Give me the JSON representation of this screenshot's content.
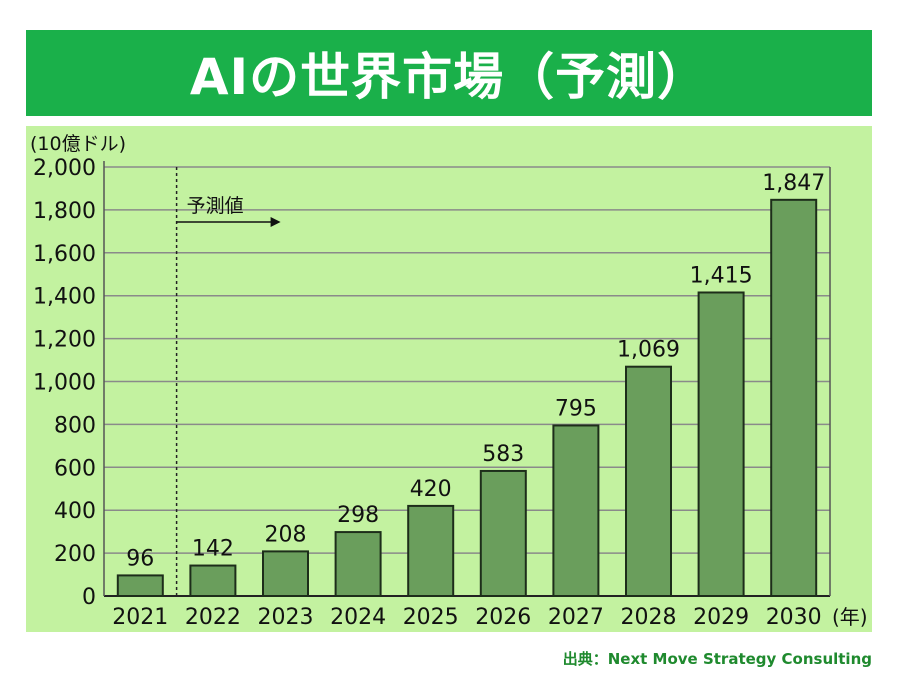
{
  "title": "AIの世界市場（予測）",
  "source": "出典：Next Move Strategy Consulting",
  "colors": {
    "title_bg": "#1ab04a",
    "plot_bg": "#c3f2a0",
    "bar": "#6a9e5c",
    "bar_edge": "#1d2d1a",
    "grid": "#8a8a8a"
  },
  "chart_data": {
    "type": "bar",
    "categories": [
      "2021",
      "2022",
      "2023",
      "2024",
      "2025",
      "2026",
      "2027",
      "2028",
      "2029",
      "2030"
    ],
    "values": [
      96,
      142,
      208,
      298,
      420,
      583,
      795,
      1069,
      1415,
      1847
    ],
    "value_labels": [
      "96",
      "142",
      "208",
      "298",
      "420",
      "583",
      "795",
      "1,069",
      "1,415",
      "1,847"
    ],
    "ylabel": "(10億ドル)",
    "xunit": "(年)",
    "ylim": [
      0,
      2000
    ],
    "yticks": [
      0,
      200,
      400,
      600,
      800,
      1000,
      1200,
      1400,
      1600,
      1800,
      2000
    ],
    "ytick_labels": [
      "0",
      "200",
      "400",
      "600",
      "800",
      "1,000",
      "1,200",
      "1,400",
      "1,600",
      "1,800",
      "2,000"
    ],
    "grid": true,
    "annotation": "予測値",
    "forecast_start": "2022"
  }
}
